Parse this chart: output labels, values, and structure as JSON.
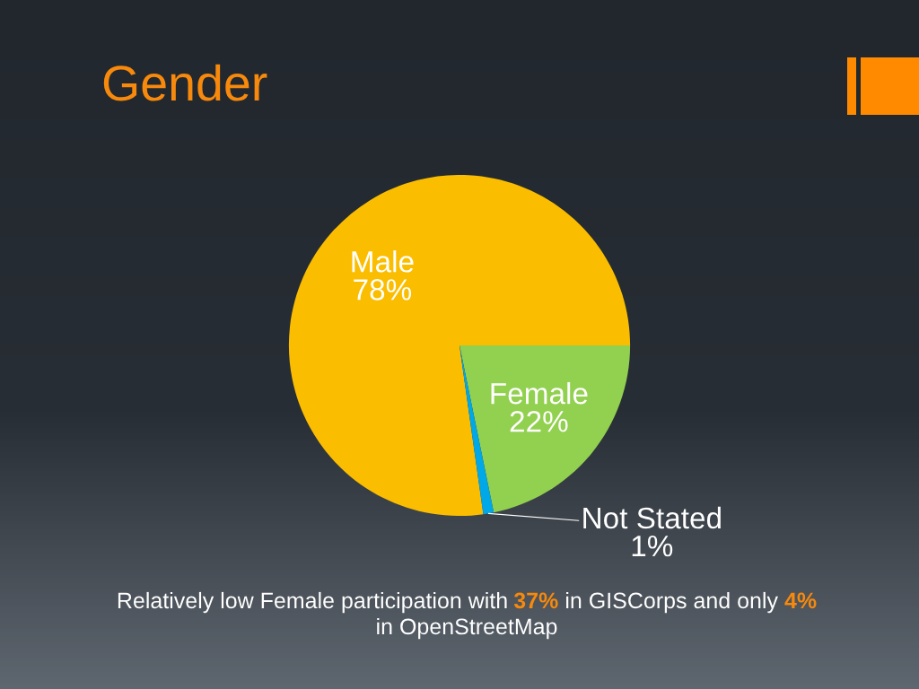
{
  "chart_data": {
    "type": "pie",
    "title": "Gender",
    "categories": [
      "Male",
      "Female",
      "Not Stated"
    ],
    "values": [
      78,
      22,
      1
    ],
    "value_labels": [
      "78%",
      "22%",
      "1%"
    ],
    "colors": [
      "#fbbd00",
      "#92d050",
      "#00a8e8"
    ],
    "annotations": [
      "Relatively low Female participation with",
      "37%",
      "in GISCorps and only",
      "4%",
      "in OpenStreetMap"
    ]
  }
}
